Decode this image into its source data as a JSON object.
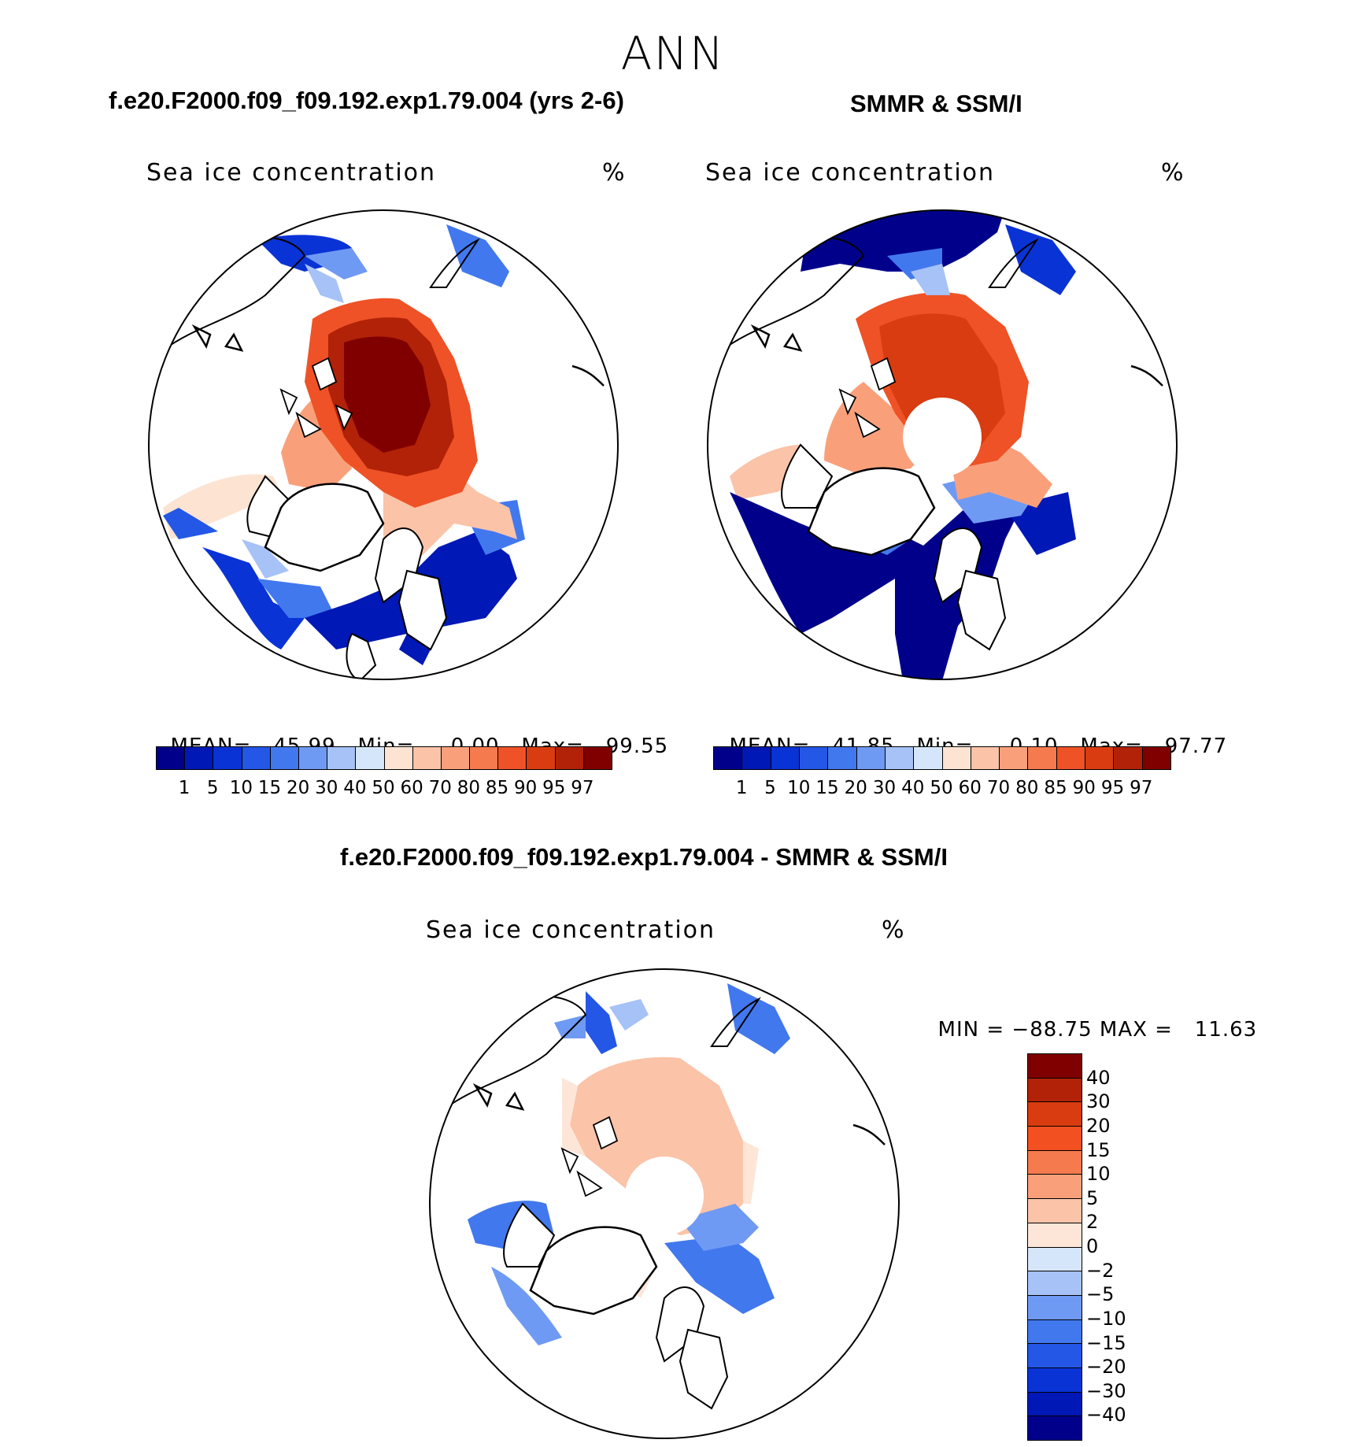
{
  "page": {
    "title": "ANN"
  },
  "panels": [
    {
      "title": "f.e20.F2000.f09_f09.192.exp1.79.004 (yrs 2-6)",
      "variable": "Sea ice concentration",
      "units": "%",
      "stats": {
        "mean_label": "MEAN=",
        "mean": "45.99",
        "min_label": "Min=",
        "min": "0.00",
        "max_label": "Max=",
        "max": "99.55"
      }
    },
    {
      "title": "SMMR & SSM/I",
      "variable": "Sea ice concentration",
      "units": "%",
      "stats": {
        "mean_label": "MEAN=",
        "mean": "41.85",
        "min_label": "Min=",
        "min": "0.10",
        "max_label": "Max=",
        "max": "97.77"
      }
    },
    {
      "title": "f.e20.F2000.f09_f09.192.exp1.79.004 - SMMR & SSM/I",
      "variable": "Sea ice concentration",
      "units": "%",
      "stats": {
        "min_label": "MIN =",
        "min": "−88.75",
        "max_label": "MAX =",
        "max": "11.63"
      }
    }
  ],
  "abs_colorbar": {
    "colors": [
      "#00008b",
      "#0018b5",
      "#0a33d6",
      "#2457e6",
      "#4278ee",
      "#6f9af3",
      "#a6c2f7",
      "#d6e6fa",
      "#fde3d2",
      "#fbc3a8",
      "#f9a07b",
      "#f57a4d",
      "#ee5226",
      "#d93c10",
      "#b12208",
      "#800000"
    ],
    "tick_labels": [
      "1",
      "5",
      "10",
      "15",
      "20",
      "30",
      "40",
      "50",
      "60",
      "70",
      "80",
      "85",
      "90",
      "95",
      "97"
    ]
  },
  "diff_colorbar": {
    "colors_top_to_bottom": [
      "#800000",
      "#b12208",
      "#d93c10",
      "#f35022",
      "#f57a4d",
      "#f9a07b",
      "#fbc3a8",
      "#fde6d8",
      "#d6e6fa",
      "#a6c2f7",
      "#6f9af3",
      "#4278ee",
      "#2457e6",
      "#0a33d6",
      "#0018b5",
      "#00008b"
    ],
    "tick_labels_top_to_bottom": [
      "40",
      "30",
      "20",
      "15",
      "10",
      "5",
      "2",
      "0",
      "−2",
      "−5",
      "−10",
      "−15",
      "−20",
      "−30",
      "−40"
    ]
  }
}
